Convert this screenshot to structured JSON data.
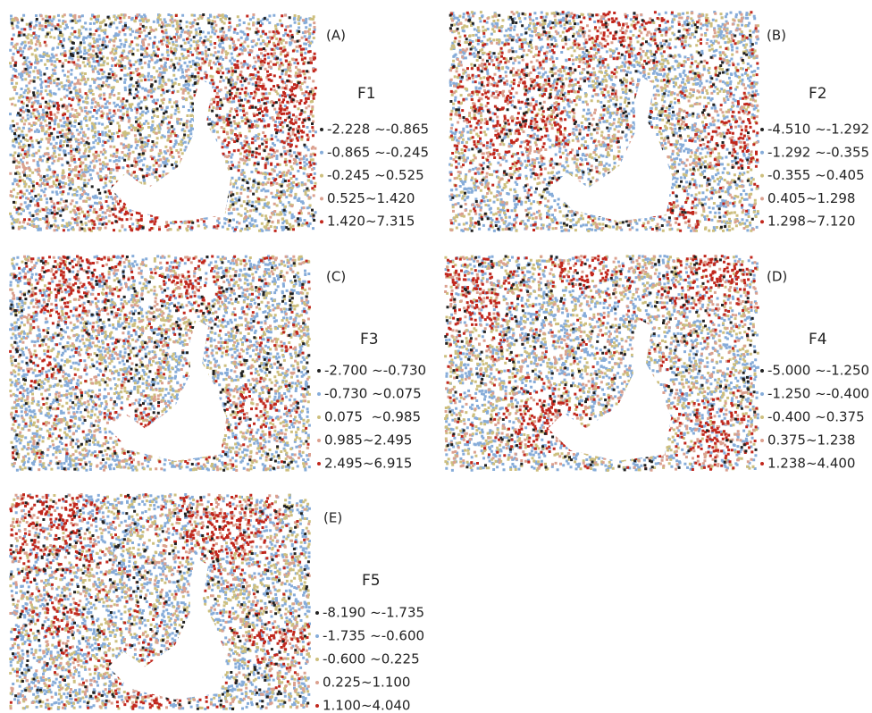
{
  "panels": [
    {
      "label": "(A)",
      "title": "F1",
      "legend": [
        "-2.228 ~-0.865",
        "-0.865 ~-0.245",
        "-0.245 ~0.525",
        "0.525~1.420",
        "1.420~7.315"
      ]
    },
    {
      "label": "(B)",
      "title": "F2",
      "legend": [
        "-4.510 ~-1.292",
        "-1.292 ~-0.355",
        "-0.355 ~0.405",
        "0.405~1.298",
        "1.298~7.120"
      ]
    },
    {
      "label": "(C)",
      "title": "F3",
      "legend": [
        "-2.700 ~-0.730",
        "-0.730 ~0.075",
        "0.075  ~0.985",
        "0.985~2.495",
        "2.495~6.915"
      ]
    },
    {
      "label": "(D)",
      "title": "F4",
      "legend": [
        "-5.000 ~-1.250",
        "-1.250 ~-0.400",
        "-0.400 ~0.375",
        "0.375~1.238",
        "1.238~4.400"
      ]
    },
    {
      "label": "(E)",
      "title": "F5",
      "legend": [
        "-8.190 ~-1.735",
        "-1.735 ~-0.600",
        "-0.600 ~0.225",
        "0.225~1.100",
        "1.100~4.040"
      ]
    }
  ]
}
